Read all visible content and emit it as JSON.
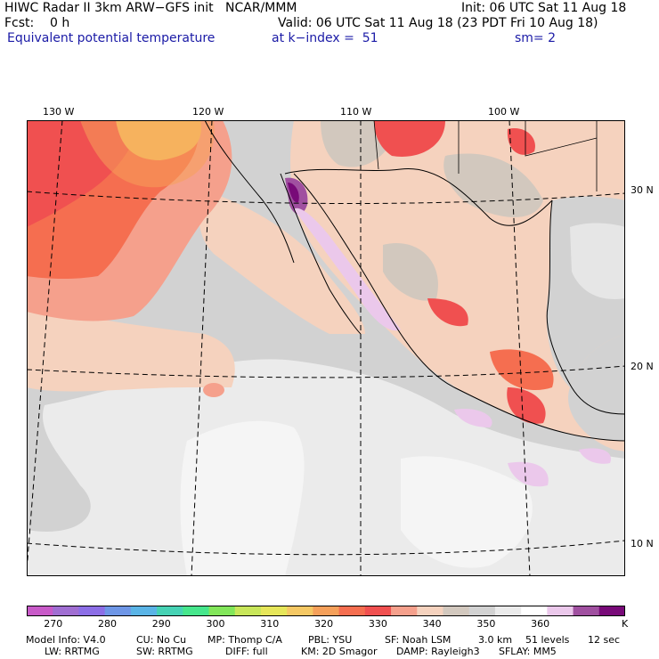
{
  "header": {
    "title": "HIWC Radar II 3km ARW−GFS init   NCAR/MMM",
    "init": "Init: 06 UTC Sat 11 Aug 18",
    "fcst": "Fcst:    0 h",
    "valid": "Valid: 06 UTC Sat 11 Aug 18 (23 PDT Fri 10 Aug 18)",
    "field": "Equivalent potential temperature",
    "level": "at k−index =  51",
    "smooth": "sm= 2"
  },
  "longitude_labels": [
    "130 W",
    "120 W",
    "110 W",
    "100 W"
  ],
  "latitude_labels": [
    "30 N",
    "20 N",
    "10 N"
  ],
  "colorbar": {
    "colors": [
      "#c85ac8",
      "#a06ed2",
      "#8c6ee6",
      "#6e96e6",
      "#5ab4e6",
      "#46d2b4",
      "#46e68c",
      "#82e65a",
      "#c8e65a",
      "#e6e65a",
      "#f5c864",
      "#f5a05a",
      "#f56e50",
      "#f05050",
      "#f5a08c",
      "#f5d2be",
      "#d2c8be",
      "#d2d2d2",
      "#ebebeb",
      "#ffffff",
      "#ebc8eb",
      "#a050a0",
      "#780a78"
    ],
    "tick_labels": [
      "270",
      "280",
      "290",
      "300",
      "310",
      "320",
      "330",
      "340",
      "350",
      "360"
    ],
    "unit": "K"
  },
  "footer": {
    "line1": {
      "model": "Model Info: V4.0",
      "cu": "CU: No Cu",
      "mp": "MP: Thomp C/A",
      "pbl": "PBL: YSU",
      "sf": "SF: Noah LSM",
      "res": "3.0 km",
      "levels": "51 levels",
      "dt": "12 sec"
    },
    "line2": {
      "lw": "LW: RRTMG",
      "sw": "SW: RRTMG",
      "diff": "DIFF: full",
      "km": "KM: 2D Smagor",
      "damp": "DAMP: Rayleigh3",
      "sflay": "SFLAY: MM5"
    }
  }
}
